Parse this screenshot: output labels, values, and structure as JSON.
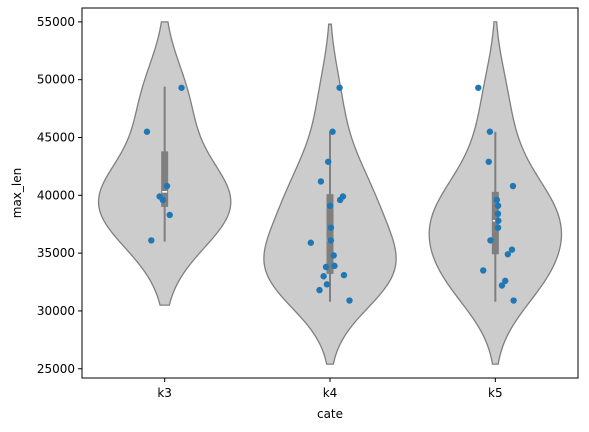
{
  "chart_data": {
    "type": "violin",
    "xlabel": "cate",
    "ylabel": "max_len",
    "ylim": [
      24200,
      56200
    ],
    "yticks": [
      25000,
      30000,
      35000,
      40000,
      45000,
      50000,
      55000
    ],
    "ytick_labels": [
      "25000",
      "30000",
      "35000",
      "40000",
      "45000",
      "50000",
      "55000"
    ],
    "categories": [
      "k3",
      "k4",
      "k5"
    ],
    "colors": {
      "violin_fill": "#cccccc",
      "violin_edge": "#7f7f7f",
      "box": "#7f7f7f",
      "median": "#ffffff",
      "points": "#1f77b4"
    },
    "groups": [
      {
        "category": "k3",
        "violin_range": [
          30500,
          55000
        ],
        "box": {
          "whisker_low": 36000,
          "q1": 39000,
          "median": 40300,
          "q3": 43800,
          "whisker_high": 49400
        },
        "points": [
          49300,
          45500,
          40800,
          39900,
          39600,
          38300,
          36100
        ]
      },
      {
        "category": "k4",
        "violin_range": [
          25400,
          54800
        ],
        "box": {
          "whisker_low": 30800,
          "q1": 33200,
          "median": 36100,
          "q3": 40100,
          "whisker_high": 45500
        },
        "points": [
          49300,
          45500,
          42900,
          41200,
          39900,
          39600,
          39100,
          37200,
          36100,
          35900,
          34800,
          33900,
          33800,
          33100,
          33000,
          32300,
          31800,
          30900
        ]
      },
      {
        "category": "k5",
        "violin_range": [
          25400,
          55000
        ],
        "box": {
          "whisker_low": 30800,
          "q1": 34900,
          "median": 37800,
          "q3": 40300,
          "whisker_high": 45500
        },
        "points": [
          49300,
          45500,
          42900,
          40800,
          39600,
          39100,
          38400,
          37800,
          37200,
          36100,
          35300,
          34900,
          33500,
          32600,
          32200,
          30900
        ]
      }
    ]
  }
}
